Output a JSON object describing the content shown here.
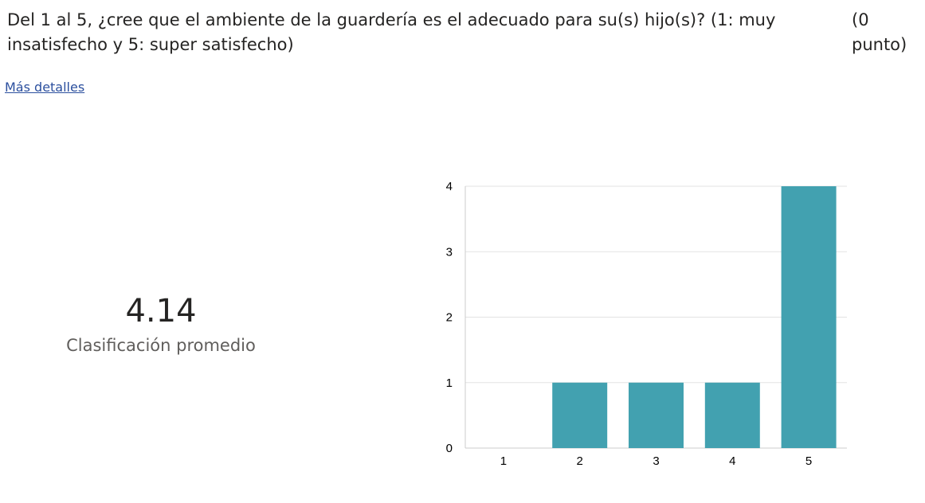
{
  "question": {
    "text": "Del 1 al 5, ¿cree que el ambiente de la guardería es el adecuado para su(s) hijo(s)? (1: muy insatisfecho y 5: super satisfecho)",
    "points": "(0 punto)"
  },
  "more_details_link": "Más detalles",
  "summary": {
    "average": "4.14",
    "label": "Clasificación promedio"
  },
  "colors": {
    "bar": "#42a1b0",
    "grid": "#e3e3e3"
  },
  "chart_data": {
    "type": "bar",
    "categories": [
      "1",
      "2",
      "3",
      "4",
      "5"
    ],
    "values": [
      0,
      1,
      1,
      1,
      4
    ],
    "title": "",
    "xlabel": "",
    "ylabel": "",
    "ylim": [
      0,
      4
    ],
    "yticks": [
      "0",
      "1",
      "2",
      "3",
      "4"
    ],
    "grid": true,
    "legend": "none"
  }
}
